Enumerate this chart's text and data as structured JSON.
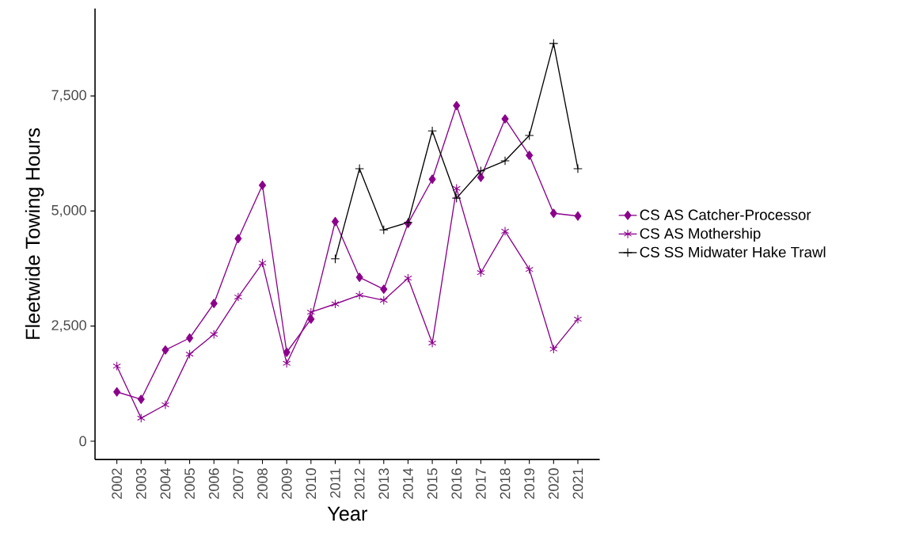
{
  "chart_data": {
    "type": "line",
    "xlabel": "Year",
    "ylabel": "Fleetwide Towing Hours",
    "categories": [
      "2002",
      "2003",
      "2004",
      "2005",
      "2006",
      "2007",
      "2008",
      "2009",
      "2010",
      "2011",
      "2012",
      "2013",
      "2014",
      "2015",
      "2016",
      "2017",
      "2018",
      "2019",
      "2020",
      "2021"
    ],
    "series": [
      {
        "name": "CS AS Catcher-Processor",
        "color": "#8b008b",
        "marker": "diamond",
        "values": [
          1070,
          910,
          1980,
          2240,
          2990,
          4400,
          5560,
          1930,
          2650,
          4770,
          3560,
          3300,
          4730,
          5690,
          7290,
          5730,
          7000,
          6210,
          4950,
          4890
        ]
      },
      {
        "name": "CS AS Mothership",
        "color": "#8b008b",
        "marker": "cross",
        "values": [
          1630,
          500,
          790,
          1890,
          2320,
          3130,
          3870,
          1690,
          2800,
          2980,
          3170,
          3060,
          3540,
          2130,
          5490,
          3660,
          4560,
          3730,
          2000,
          2650
        ]
      },
      {
        "name": "CS SS Midwater Hake Trawl",
        "color": "#000000",
        "marker": "cross",
        "values": [
          null,
          null,
          null,
          null,
          null,
          null,
          null,
          null,
          null,
          3960,
          5920,
          4590,
          4750,
          6740,
          5280,
          5870,
          6090,
          6640,
          8640,
          5920
        ]
      }
    ],
    "ylim": [
      -400,
      9400
    ],
    "yticks": [
      0,
      {
        "value": 2500,
        "label": "2,500"
      },
      {
        "value": 5000,
        "label": "5,000"
      },
      {
        "value": 7500,
        "label": "7,500"
      }
    ],
    "grid": false,
    "legend": "right",
    "line_style": "solid"
  }
}
